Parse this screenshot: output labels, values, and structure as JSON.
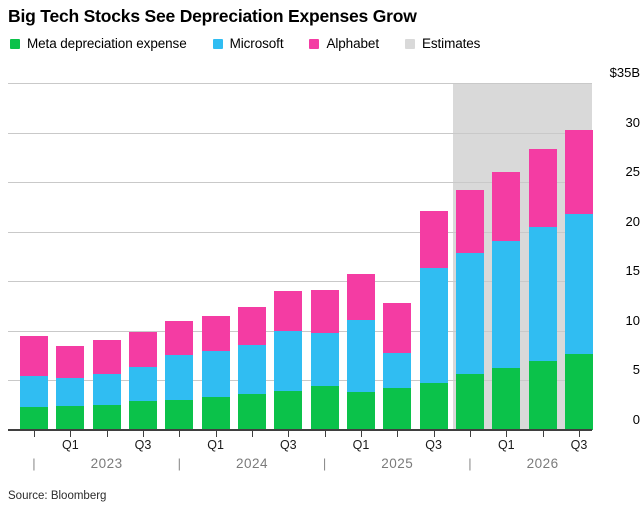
{
  "title": "Big Tech Stocks See Depreciation Expenses Grow",
  "source": "Source: Bloomberg",
  "legend": [
    {
      "label": "Meta depreciation expense",
      "color": "#0bc24a"
    },
    {
      "label": "Microsoft",
      "color": "#30bdf2"
    },
    {
      "label": "Alphabet",
      "color": "#f43ca3"
    },
    {
      "label": "Estimates",
      "color": "#d9d9d9"
    }
  ],
  "colors": {
    "meta_green": "#0bc24a",
    "microsoft_blue": "#30bdf2",
    "alphabet_pink": "#f43ca3",
    "estimates_gray": "#d9d9d9",
    "gridline": "#c9c9c9",
    "axis": "#3f3f3f"
  },
  "chart_data": {
    "type": "bar",
    "stacked": true,
    "unit": "USD billions",
    "title": "Big Tech Stocks See Depreciation Expenses Grow",
    "categories": [
      "Q4 2022",
      "Q1 2023",
      "Q2 2023",
      "Q3 2023",
      "Q4 2023",
      "Q1 2024",
      "Q2 2024",
      "Q3 2024",
      "Q4 2024",
      "Q1 2025",
      "Q2 2025",
      "Q3 2025",
      "Q4 2025",
      "Q1 2026",
      "Q2 2026",
      "Q3 2026"
    ],
    "series": [
      {
        "name": "Meta depreciation expense",
        "color": "#0bc24a",
        "values": [
          2.3,
          2.4,
          2.5,
          2.9,
          3.0,
          3.3,
          3.6,
          3.9,
          4.4,
          3.8,
          4.2,
          4.7,
          5.7,
          6.3,
          7.0,
          7.7
        ]
      },
      {
        "name": "Microsoft",
        "color": "#30bdf2",
        "values": [
          3.1,
          2.8,
          3.2,
          3.5,
          4.6,
          4.7,
          5.0,
          6.1,
          5.4,
          7.3,
          3.6,
          11.6,
          12.2,
          12.8,
          13.5,
          14.1
        ]
      },
      {
        "name": "Alphabet",
        "color": "#f43ca3",
        "values": [
          4.1,
          3.3,
          3.4,
          3.5,
          3.4,
          3.5,
          3.8,
          4.0,
          4.3,
          4.6,
          5.0,
          5.8,
          6.3,
          6.9,
          7.8,
          8.5
        ]
      }
    ],
    "totals": [
      9.5,
      8.5,
      9.1,
      9.9,
      11.0,
      11.5,
      12.4,
      14.0,
      14.1,
      15.7,
      12.8,
      22.1,
      24.2,
      26.0,
      28.3,
      30.3
    ],
    "estimates": {
      "label": "Estimates",
      "start_category": "Q4 2025",
      "start_index": 12,
      "color": "#d9d9d9"
    },
    "y_axis": {
      "min": 0,
      "max": 35,
      "tick_step": 5,
      "top_label": "$35B",
      "tick_labels": [
        "0",
        "5",
        "10",
        "15",
        "20",
        "25",
        "30"
      ],
      "side": "right",
      "grid": true
    },
    "x_axis": {
      "quarter_labels": [
        "",
        "Q1",
        "",
        "Q3",
        "",
        "Q1",
        "",
        "Q3",
        "",
        "Q1",
        "",
        "Q3",
        "",
        "Q1",
        "",
        "Q3"
      ],
      "year_groups": [
        {
          "label": "2023",
          "separator_index": 0
        },
        {
          "label": "2024",
          "separator_index": 4
        },
        {
          "label": "2025",
          "separator_index": 8
        },
        {
          "label": "2026",
          "separator_index": 12
        }
      ]
    },
    "legend_position": "top"
  }
}
